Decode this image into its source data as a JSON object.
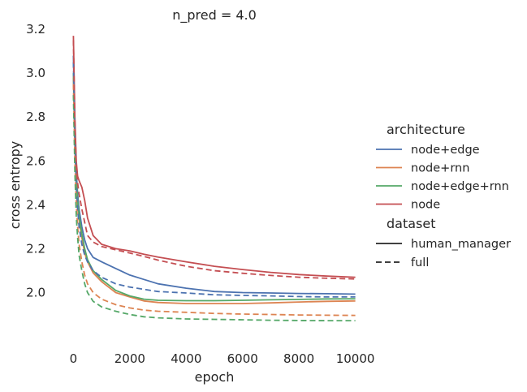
{
  "chart_data": {
    "type": "line",
    "title": "n_pred = 4.0",
    "xlabel": "epoch",
    "ylabel": "cross entropy",
    "xlim": [
      -300,
      10300
    ],
    "ylim": [
      1.78,
      3.2
    ],
    "xticks": [
      0,
      2000,
      4000,
      6000,
      8000,
      10000
    ],
    "yticks": [
      2.0,
      2.2,
      2.4,
      2.6,
      2.8,
      3.0,
      3.2
    ],
    "xtick_labels": [
      "0",
      "2000",
      "4000",
      "6000",
      "8000",
      "10000"
    ],
    "ytick_labels": [
      "2.0",
      "2.2",
      "2.4",
      "2.6",
      "2.8",
      "3.0",
      "3.2"
    ],
    "grid": false,
    "legend": {
      "placement": "right",
      "hue_title": "architecture",
      "style_title": "dataset",
      "hue_entries": [
        {
          "label": "node+edge",
          "color": "#4c72b0"
        },
        {
          "label": "node+rnn",
          "color": "#dd8452"
        },
        {
          "label": "node+edge+rnn",
          "color": "#55a868"
        },
        {
          "label": "node",
          "color": "#c44e52"
        }
      ],
      "style_entries": [
        {
          "label": "human_manager",
          "dash": "solid"
        },
        {
          "label": "full",
          "dash": "dashed"
        }
      ]
    },
    "series": [
      {
        "architecture": "node+edge",
        "dataset": "human_manager",
        "color": "#4c72b0",
        "dash": "solid",
        "x": [
          0,
          50,
          100,
          150,
          200,
          300,
          400,
          500,
          700,
          1000,
          1500,
          2000,
          2500,
          3000,
          4000,
          5000,
          6000,
          7000,
          8000,
          9000,
          10000
        ],
        "y": [
          3.08,
          2.75,
          2.55,
          2.45,
          2.38,
          2.3,
          2.24,
          2.2,
          2.16,
          2.14,
          2.11,
          2.08,
          2.06,
          2.04,
          2.02,
          2.005,
          2.0,
          1.998,
          1.996,
          1.995,
          1.993
        ]
      },
      {
        "architecture": "node+rnn",
        "dataset": "human_manager",
        "color": "#dd8452",
        "dash": "solid",
        "x": [
          0,
          50,
          100,
          150,
          200,
          300,
          400,
          500,
          700,
          1000,
          1500,
          2000,
          2500,
          3000,
          4000,
          5000,
          6000,
          7000,
          8000,
          9000,
          10000
        ],
        "y": [
          2.98,
          2.68,
          2.5,
          2.4,
          2.33,
          2.25,
          2.18,
          2.14,
          2.09,
          2.05,
          2.0,
          1.98,
          1.962,
          1.955,
          1.95,
          1.95,
          1.95,
          1.953,
          1.957,
          1.96,
          1.962
        ]
      },
      {
        "architecture": "node+edge+rnn",
        "dataset": "human_manager",
        "color": "#55a868",
        "dash": "solid",
        "x": [
          0,
          50,
          100,
          150,
          200,
          300,
          400,
          500,
          700,
          1000,
          1500,
          2000,
          2500,
          3000,
          4000,
          5000,
          6000,
          7000,
          8000,
          9000,
          10000
        ],
        "y": [
          3.0,
          2.7,
          2.52,
          2.42,
          2.35,
          2.27,
          2.2,
          2.15,
          2.1,
          2.06,
          2.01,
          1.985,
          1.97,
          1.965,
          1.963,
          1.963,
          1.965,
          1.967,
          1.969,
          1.971,
          1.972
        ]
      },
      {
        "architecture": "node",
        "dataset": "human_manager",
        "color": "#c44e52",
        "dash": "solid",
        "x": [
          0,
          50,
          100,
          150,
          200,
          300,
          400,
          500,
          700,
          1000,
          1500,
          2000,
          2500,
          3000,
          4000,
          5000,
          6000,
          7000,
          8000,
          9000,
          10000
        ],
        "y": [
          3.17,
          2.8,
          2.6,
          2.53,
          2.51,
          2.48,
          2.42,
          2.34,
          2.26,
          2.22,
          2.2,
          2.19,
          2.175,
          2.162,
          2.14,
          2.12,
          2.105,
          2.092,
          2.082,
          2.075,
          2.07
        ]
      },
      {
        "architecture": "node+edge",
        "dataset": "full",
        "color": "#4c72b0",
        "dash": "dashed",
        "x": [
          0,
          50,
          100,
          150,
          200,
          300,
          400,
          500,
          700,
          1000,
          1500,
          2000,
          2500,
          3000,
          4000,
          5000,
          6000,
          7000,
          8000,
          9000,
          10000
        ],
        "y": [
          3.05,
          2.7,
          2.48,
          2.38,
          2.3,
          2.22,
          2.17,
          2.14,
          2.1,
          2.07,
          2.04,
          2.025,
          2.015,
          2.005,
          1.998,
          1.99,
          1.987,
          1.985,
          1.982,
          1.98,
          1.98
        ]
      },
      {
        "architecture": "node+rnn",
        "dataset": "full",
        "color": "#dd8452",
        "dash": "dashed",
        "x": [
          0,
          50,
          100,
          150,
          200,
          300,
          400,
          500,
          700,
          1000,
          1500,
          2000,
          2500,
          3000,
          4000,
          5000,
          6000,
          7000,
          8000,
          9000,
          10000
        ],
        "y": [
          2.95,
          2.6,
          2.4,
          2.3,
          2.22,
          2.14,
          2.08,
          2.04,
          2.0,
          1.97,
          1.945,
          1.93,
          1.92,
          1.915,
          1.91,
          1.905,
          1.902,
          1.9,
          1.898,
          1.897,
          1.896
        ]
      },
      {
        "architecture": "node+edge+rnn",
        "dataset": "full",
        "color": "#55a868",
        "dash": "dashed",
        "x": [
          0,
          50,
          100,
          150,
          200,
          300,
          400,
          500,
          700,
          1000,
          1500,
          2000,
          2500,
          3000,
          4000,
          5000,
          6000,
          7000,
          8000,
          9000,
          10000
        ],
        "y": [
          2.9,
          2.55,
          2.35,
          2.25,
          2.17,
          2.1,
          2.04,
          2.0,
          1.96,
          1.935,
          1.915,
          1.9,
          1.89,
          1.885,
          1.88,
          1.878,
          1.876,
          1.874,
          1.873,
          1.872,
          1.872
        ]
      },
      {
        "architecture": "node",
        "dataset": "full",
        "color": "#c44e52",
        "dash": "dashed",
        "x": [
          0,
          50,
          100,
          150,
          200,
          300,
          400,
          500,
          700,
          1000,
          1500,
          2000,
          2500,
          3000,
          4000,
          5000,
          6000,
          7000,
          8000,
          9000,
          10000
        ],
        "y": [
          3.15,
          2.78,
          2.58,
          2.5,
          2.45,
          2.38,
          2.32,
          2.26,
          2.23,
          2.21,
          2.195,
          2.18,
          2.165,
          2.148,
          2.12,
          2.1,
          2.088,
          2.078,
          2.07,
          2.065,
          2.062
        ]
      }
    ]
  }
}
